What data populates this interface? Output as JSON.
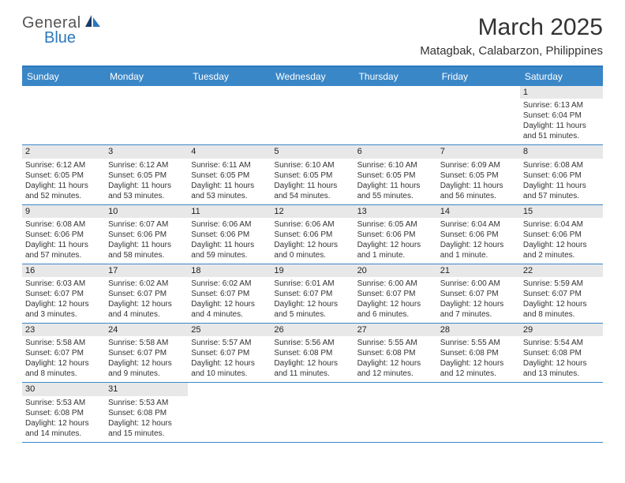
{
  "brand": {
    "general": "General",
    "blue": "Blue"
  },
  "title": "March 2025",
  "location": "Matagbak, Calabarzon, Philippines",
  "colors": {
    "accent": "#3a87c8",
    "header_text": "#ffffff",
    "daynum_bg": "#e8e8e8"
  },
  "day_headers": [
    "Sunday",
    "Monday",
    "Tuesday",
    "Wednesday",
    "Thursday",
    "Friday",
    "Saturday"
  ],
  "weeks": [
    [
      {
        "n": "",
        "empty": true
      },
      {
        "n": "",
        "empty": true
      },
      {
        "n": "",
        "empty": true
      },
      {
        "n": "",
        "empty": true
      },
      {
        "n": "",
        "empty": true
      },
      {
        "n": "",
        "empty": true
      },
      {
        "n": "1",
        "sr": "Sunrise: 6:13 AM",
        "ss": "Sunset: 6:04 PM",
        "dl": "Daylight: 11 hours and 51 minutes."
      }
    ],
    [
      {
        "n": "2",
        "sr": "Sunrise: 6:12 AM",
        "ss": "Sunset: 6:05 PM",
        "dl": "Daylight: 11 hours and 52 minutes."
      },
      {
        "n": "3",
        "sr": "Sunrise: 6:12 AM",
        "ss": "Sunset: 6:05 PM",
        "dl": "Daylight: 11 hours and 53 minutes."
      },
      {
        "n": "4",
        "sr": "Sunrise: 6:11 AM",
        "ss": "Sunset: 6:05 PM",
        "dl": "Daylight: 11 hours and 53 minutes."
      },
      {
        "n": "5",
        "sr": "Sunrise: 6:10 AM",
        "ss": "Sunset: 6:05 PM",
        "dl": "Daylight: 11 hours and 54 minutes."
      },
      {
        "n": "6",
        "sr": "Sunrise: 6:10 AM",
        "ss": "Sunset: 6:05 PM",
        "dl": "Daylight: 11 hours and 55 minutes."
      },
      {
        "n": "7",
        "sr": "Sunrise: 6:09 AM",
        "ss": "Sunset: 6:05 PM",
        "dl": "Daylight: 11 hours and 56 minutes."
      },
      {
        "n": "8",
        "sr": "Sunrise: 6:08 AM",
        "ss": "Sunset: 6:06 PM",
        "dl": "Daylight: 11 hours and 57 minutes."
      }
    ],
    [
      {
        "n": "9",
        "sr": "Sunrise: 6:08 AM",
        "ss": "Sunset: 6:06 PM",
        "dl": "Daylight: 11 hours and 57 minutes."
      },
      {
        "n": "10",
        "sr": "Sunrise: 6:07 AM",
        "ss": "Sunset: 6:06 PM",
        "dl": "Daylight: 11 hours and 58 minutes."
      },
      {
        "n": "11",
        "sr": "Sunrise: 6:06 AM",
        "ss": "Sunset: 6:06 PM",
        "dl": "Daylight: 11 hours and 59 minutes."
      },
      {
        "n": "12",
        "sr": "Sunrise: 6:06 AM",
        "ss": "Sunset: 6:06 PM",
        "dl": "Daylight: 12 hours and 0 minutes."
      },
      {
        "n": "13",
        "sr": "Sunrise: 6:05 AM",
        "ss": "Sunset: 6:06 PM",
        "dl": "Daylight: 12 hours and 1 minute."
      },
      {
        "n": "14",
        "sr": "Sunrise: 6:04 AM",
        "ss": "Sunset: 6:06 PM",
        "dl": "Daylight: 12 hours and 1 minute."
      },
      {
        "n": "15",
        "sr": "Sunrise: 6:04 AM",
        "ss": "Sunset: 6:06 PM",
        "dl": "Daylight: 12 hours and 2 minutes."
      }
    ],
    [
      {
        "n": "16",
        "sr": "Sunrise: 6:03 AM",
        "ss": "Sunset: 6:07 PM",
        "dl": "Daylight: 12 hours and 3 minutes."
      },
      {
        "n": "17",
        "sr": "Sunrise: 6:02 AM",
        "ss": "Sunset: 6:07 PM",
        "dl": "Daylight: 12 hours and 4 minutes."
      },
      {
        "n": "18",
        "sr": "Sunrise: 6:02 AM",
        "ss": "Sunset: 6:07 PM",
        "dl": "Daylight: 12 hours and 4 minutes."
      },
      {
        "n": "19",
        "sr": "Sunrise: 6:01 AM",
        "ss": "Sunset: 6:07 PM",
        "dl": "Daylight: 12 hours and 5 minutes."
      },
      {
        "n": "20",
        "sr": "Sunrise: 6:00 AM",
        "ss": "Sunset: 6:07 PM",
        "dl": "Daylight: 12 hours and 6 minutes."
      },
      {
        "n": "21",
        "sr": "Sunrise: 6:00 AM",
        "ss": "Sunset: 6:07 PM",
        "dl": "Daylight: 12 hours and 7 minutes."
      },
      {
        "n": "22",
        "sr": "Sunrise: 5:59 AM",
        "ss": "Sunset: 6:07 PM",
        "dl": "Daylight: 12 hours and 8 minutes."
      }
    ],
    [
      {
        "n": "23",
        "sr": "Sunrise: 5:58 AM",
        "ss": "Sunset: 6:07 PM",
        "dl": "Daylight: 12 hours and 8 minutes."
      },
      {
        "n": "24",
        "sr": "Sunrise: 5:58 AM",
        "ss": "Sunset: 6:07 PM",
        "dl": "Daylight: 12 hours and 9 minutes."
      },
      {
        "n": "25",
        "sr": "Sunrise: 5:57 AM",
        "ss": "Sunset: 6:07 PM",
        "dl": "Daylight: 12 hours and 10 minutes."
      },
      {
        "n": "26",
        "sr": "Sunrise: 5:56 AM",
        "ss": "Sunset: 6:08 PM",
        "dl": "Daylight: 12 hours and 11 minutes."
      },
      {
        "n": "27",
        "sr": "Sunrise: 5:55 AM",
        "ss": "Sunset: 6:08 PM",
        "dl": "Daylight: 12 hours and 12 minutes."
      },
      {
        "n": "28",
        "sr": "Sunrise: 5:55 AM",
        "ss": "Sunset: 6:08 PM",
        "dl": "Daylight: 12 hours and 12 minutes."
      },
      {
        "n": "29",
        "sr": "Sunrise: 5:54 AM",
        "ss": "Sunset: 6:08 PM",
        "dl": "Daylight: 12 hours and 13 minutes."
      }
    ],
    [
      {
        "n": "30",
        "sr": "Sunrise: 5:53 AM",
        "ss": "Sunset: 6:08 PM",
        "dl": "Daylight: 12 hours and 14 minutes."
      },
      {
        "n": "31",
        "sr": "Sunrise: 5:53 AM",
        "ss": "Sunset: 6:08 PM",
        "dl": "Daylight: 12 hours and 15 minutes."
      },
      {
        "n": "",
        "empty": true
      },
      {
        "n": "",
        "empty": true
      },
      {
        "n": "",
        "empty": true
      },
      {
        "n": "",
        "empty": true
      },
      {
        "n": "",
        "empty": true
      }
    ]
  ]
}
